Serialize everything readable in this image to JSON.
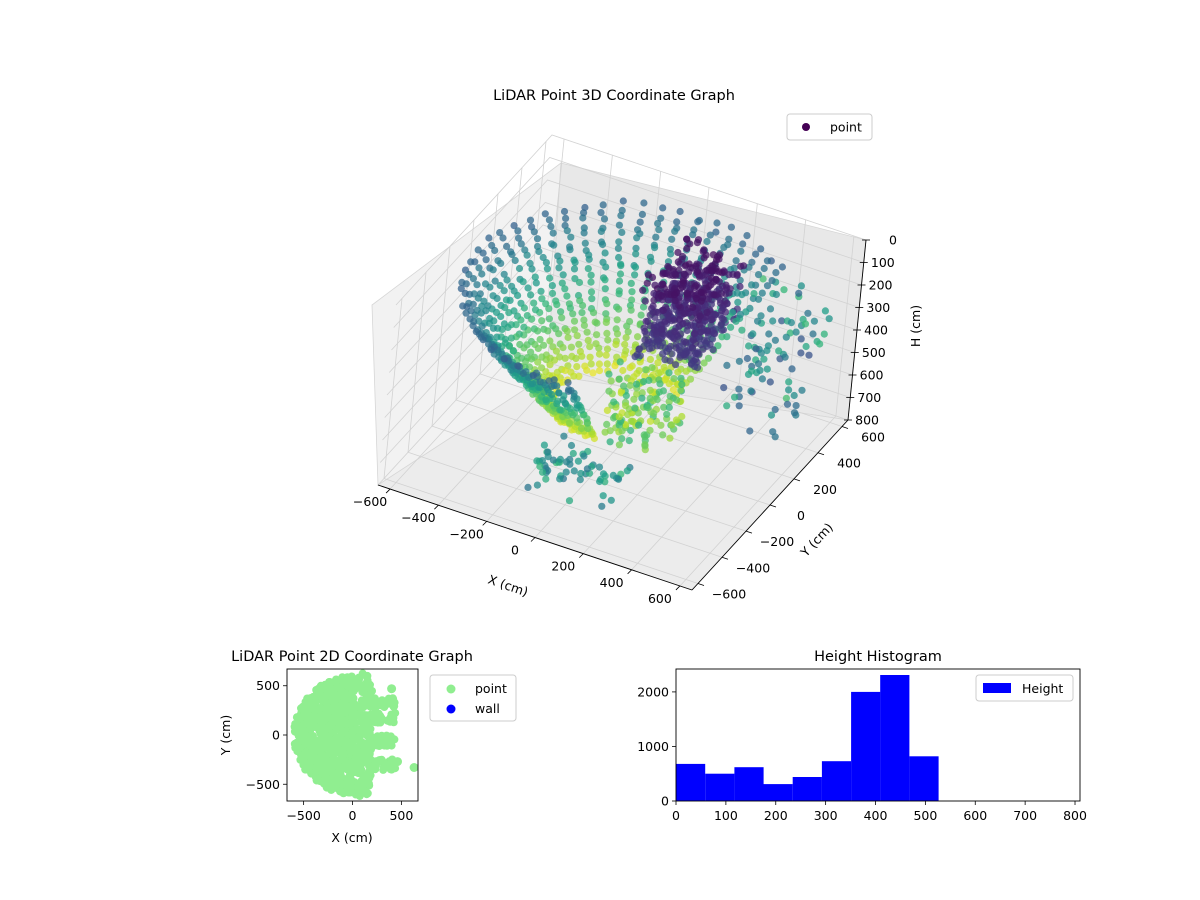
{
  "chart_data": [
    {
      "type": "scatter",
      "projection": "3d",
      "title": "LiDAR Point 3D Coordinate Graph",
      "xlabel": "X (cm)",
      "ylabel": "Y (cm)",
      "zlabel": "H (cm)",
      "xticks": [
        "−600",
        "−400",
        "−200",
        "0",
        "200",
        "400",
        "600"
      ],
      "yticks": [
        "−600",
        "−400",
        "−200",
        "0",
        "200",
        "400",
        "600"
      ],
      "zticks": [
        "0",
        "100",
        "200",
        "300",
        "400",
        "500",
        "600",
        "700",
        "800"
      ],
      "xlim": [
        -650,
        650
      ],
      "ylim": [
        -650,
        650
      ],
      "zlim": [
        800,
        0
      ],
      "z_axis_inverted": true,
      "colormap": "viridis",
      "legend": {
        "entries": [
          "point"
        ],
        "placement": "top-right"
      },
      "grid": true,
      "series": [
        {
          "name": "point",
          "color": "#440154",
          "shape": "partial dome of points, roughly 4-6 m radius, heights 0-800 cm; dense cluster near x 0..300, y 0..400 at heights 100-400; scattered outliers toward x 300-600"
        }
      ]
    },
    {
      "type": "scatter",
      "title": "LiDAR Point 2D Coordinate Graph",
      "xlabel": "X (cm)",
      "ylabel": "Y (cm)",
      "xticks": [
        "−500",
        "0",
        "500"
      ],
      "yticks": [
        "−500",
        "0",
        "500"
      ],
      "xlim": [
        -670,
        670
      ],
      "ylim": [
        -670,
        670
      ],
      "legend": {
        "entries": [
          "point",
          "wall"
        ],
        "placement": "outside-right"
      },
      "series": [
        {
          "name": "point",
          "color": "#90ee90"
        },
        {
          "name": "wall",
          "color": "#0000ff"
        }
      ]
    },
    {
      "type": "bar",
      "subtype": "histogram",
      "title": "Height Histogram",
      "xticks": [
        "0",
        "100",
        "200",
        "300",
        "400",
        "500",
        "600",
        "700",
        "800"
      ],
      "yticks": [
        "0",
        "1000",
        "2000"
      ],
      "xlim": [
        0,
        810
      ],
      "ylim": [
        0,
        2420
      ],
      "legend": {
        "entries": [
          "Height"
        ],
        "placement": "top-right"
      },
      "series": [
        {
          "name": "Height",
          "color": "#0000ff",
          "bins": [
            0,
            58.5,
            117,
            175.5,
            234,
            292.5,
            351,
            409.5,
            468,
            526.5,
            585,
            643.5,
            702,
            760.5,
            819
          ],
          "values": [
            680,
            500,
            620,
            310,
            440,
            730,
            2000,
            2310,
            820,
            0,
            0,
            0,
            0,
            0
          ]
        }
      ]
    }
  ]
}
